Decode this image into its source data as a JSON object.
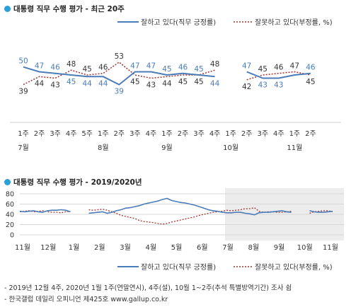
{
  "chart_data": [
    {
      "type": "line",
      "title": "대통령 직무 수행 평가",
      "subtitle": "최근 20주",
      "categories": [
        "1주",
        "2주",
        "3주",
        "4주",
        "5주",
        "1주",
        "2주",
        "3주",
        "4주",
        "1주",
        "2주",
        "3주",
        "4주",
        "1주",
        "2주",
        "3주",
        "4주",
        "1주",
        "2주"
      ],
      "month_labels": [
        {
          "index": 0,
          "label": "7월"
        },
        {
          "index": 5,
          "label": "8월"
        },
        {
          "index": 9,
          "label": "9월"
        },
        {
          "index": 13,
          "label": "10월"
        },
        {
          "index": 17,
          "label": "11월"
        }
      ],
      "series": [
        {
          "name": "잘하고 있다(직무 긍정률)",
          "color": "#4a7cb8",
          "style": "solid",
          "values": [
            50,
            47,
            46,
            45,
            44,
            44,
            39,
            47,
            47,
            45,
            46,
            45,
            44,
            null,
            47,
            43,
            43,
            45,
            46
          ],
          "labels": [
            "50",
            "47",
            "46",
            "45",
            "44",
            "44",
            "39",
            "47",
            "47",
            "45",
            "46",
            "45",
            "44",
            "",
            "47",
            "43",
            "43",
            "",
            "46"
          ]
        },
        {
          "name": "잘못하고 있다(부정률, %)",
          "color": "#a03232",
          "style": "dotted",
          "values": [
            39,
            44,
            43,
            48,
            45,
            46,
            53,
            45,
            43,
            44,
            45,
            45,
            48,
            null,
            42,
            45,
            46,
            47,
            45
          ],
          "labels": [
            "39",
            "44",
            "43",
            "48",
            "45",
            "46",
            "53",
            "45",
            "43",
            "44",
            "45",
            "45",
            "48",
            "",
            "42",
            "45",
            "46",
            "47",
            "45"
          ]
        }
      ],
      "ylim": [
        30,
        60
      ],
      "grid": false,
      "legend": "top-right"
    },
    {
      "type": "line",
      "title": "대통령 직무 수행 평가",
      "subtitle": "2019/2020년",
      "ylim": [
        0,
        80
      ],
      "yticks": [
        "0",
        "20",
        "40",
        "60",
        "80"
      ],
      "month_labels": [
        "11월",
        "12월",
        "1월",
        "2월",
        "3월",
        "4월",
        "5월",
        "6월",
        "7월",
        "8월",
        "9월",
        "10월",
        "11월"
      ],
      "shaded_from_index": 8,
      "series": [
        {
          "name": "잘하고 있다(직무 긍정률)",
          "color": "#4a7cb8",
          "style": "solid",
          "values": [
            46,
            45,
            46,
            47,
            45,
            44,
            47,
            48,
            48,
            49,
            48,
            45,
            null,
            44,
            null,
            42,
            43,
            44,
            45,
            42,
            44,
            47,
            49,
            52,
            53,
            55,
            57,
            60,
            62,
            64,
            66,
            69,
            71,
            67,
            65,
            63,
            62,
            60,
            58,
            55,
            52,
            49,
            47,
            46,
            44,
            43,
            43,
            44,
            44,
            42,
            41,
            39,
            43,
            44,
            44,
            45,
            46,
            47,
            45,
            44,
            null,
            46,
            null,
            47,
            45,
            44,
            44,
            45,
            46
          ]
        },
        {
          "name": "잘못하고 있다(부정률, %)",
          "color": "#a03232",
          "style": "dotted",
          "values": [
            45,
            46,
            47,
            45,
            46,
            47,
            45,
            44,
            44,
            43,
            45,
            46,
            null,
            48,
            null,
            49,
            48,
            49,
            50,
            48,
            45,
            42,
            38,
            36,
            34,
            32,
            28,
            26,
            25,
            24,
            22,
            21,
            22,
            25,
            27,
            29,
            31,
            33,
            35,
            38,
            40,
            42,
            44,
            45,
            46,
            48,
            47,
            48,
            49,
            51,
            51,
            53,
            46,
            44,
            45,
            45,
            44,
            44,
            45,
            46,
            null,
            45,
            null,
            42,
            45,
            46,
            47,
            47,
            45
          ]
        }
      ],
      "grid": true,
      "legend": "bottom-right"
    }
  ],
  "legend_items": {
    "positive": "잘하고 있다(직무 긍정률)",
    "negative": "잘못하고 있다(부정률, %)"
  },
  "footnotes": [
    "- 2019년 12월 4주, 2020년 1월 1주(연말연시), 4주(설), 10월 1~2주(추석 특별방역기간) 조사 쉼",
    "- 한국갤럽 데일리 오피니언 제425호 www.gallup.co.kr"
  ]
}
